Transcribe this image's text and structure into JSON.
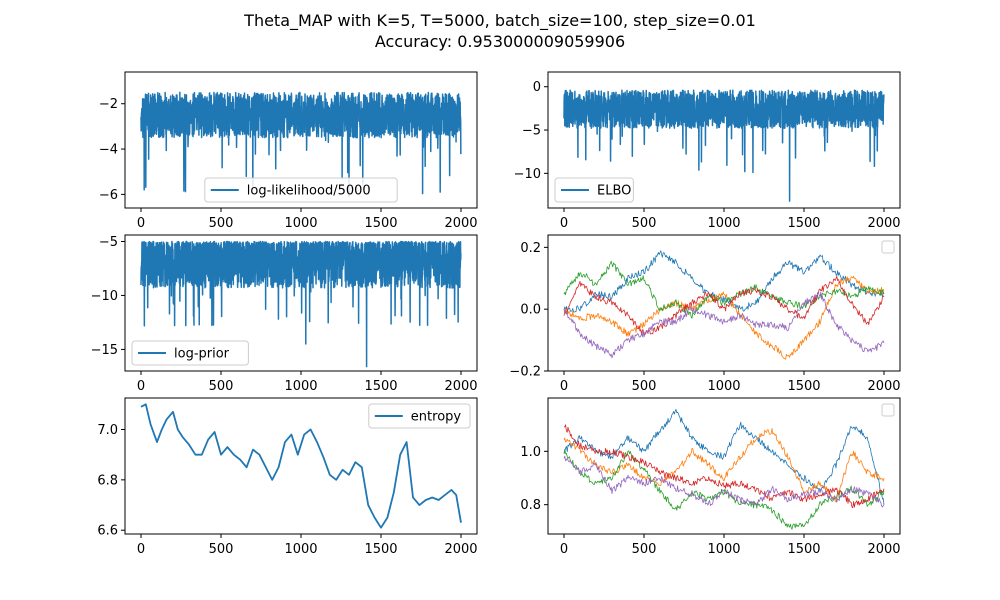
{
  "title": {
    "line1": "Theta_MAP with K=5, T=5000, batch_size=100, step_size=0.01",
    "line2": "Accuracy: 0.953000009059906"
  },
  "colors": {
    "primary": "#1f77b4",
    "series": [
      "#1f77b4",
      "#ff7f0e",
      "#2ca02c",
      "#d62728",
      "#9467bd"
    ]
  },
  "chart_data": [
    {
      "type": "line",
      "legend": "log-likelihood/5000",
      "legend_position": "bottom-center",
      "xlim": [
        -100,
        2100
      ],
      "ylim": [
        -6.6,
        -0.6
      ],
      "xticks": [
        0,
        500,
        1000,
        1500,
        2000
      ],
      "xtick_labels": [
        "0",
        "500",
        "1000",
        "1500",
        "2000"
      ],
      "yticks": [
        -6,
        -4,
        -2
      ],
      "ytick_labels": [
        "−6",
        "−4",
        "−2"
      ],
      "signal": {
        "kind": "noise",
        "n": 2000,
        "base": -2.5,
        "spread": 1.0,
        "spike_prob": 0.02,
        "spike_min": -6.0,
        "top": -0.7
      },
      "notable_points": [
        [
          1300,
          -6.1
        ],
        [
          1870,
          -5.9
        ],
        [
          20,
          -5.8
        ]
      ]
    },
    {
      "type": "line",
      "legend": "ELBO",
      "legend_position": "bottom-left",
      "xlim": [
        -100,
        2100
      ],
      "ylim": [
        -14,
        1.7
      ],
      "xticks": [
        0,
        500,
        1000,
        1500,
        2000
      ],
      "xtick_labels": [
        "0",
        "500",
        "1000",
        "1500",
        "2000"
      ],
      "yticks": [
        -10,
        -5,
        0
      ],
      "ytick_labels": [
        "−10",
        "−5",
        "0"
      ],
      "signal": {
        "kind": "noise",
        "n": 2000,
        "base": -2.6,
        "spread": 2.2,
        "spike_prob": 0.02,
        "spike_min": -10,
        "top": 0.8
      },
      "notable_points": [
        [
          1410,
          -13.2
        ],
        [
          1130,
          -9.8
        ],
        [
          1940,
          -9.2
        ]
      ]
    },
    {
      "type": "line",
      "legend": "log-prior",
      "legend_position": "bottom-left",
      "xlim": [
        -100,
        2100
      ],
      "ylim": [
        -17,
        -4.4
      ],
      "xticks": [
        0,
        500,
        1000,
        1500,
        2000
      ],
      "xtick_labels": [
        "0",
        "500",
        "1000",
        "1500",
        "2000"
      ],
      "yticks": [
        -15,
        -10,
        -5
      ],
      "ytick_labels": [
        "−15",
        "−10",
        "−5"
      ],
      "signal": {
        "kind": "noise",
        "n": 2000,
        "base": -6.8,
        "spread": 2.5,
        "spike_prob": 0.02,
        "spike_min": -13,
        "top": -5.0
      },
      "notable_points": [
        [
          1410,
          -16.6
        ],
        [
          1030,
          -14.5
        ],
        [
          280,
          -12.8
        ]
      ]
    },
    {
      "type": "line",
      "legend": "",
      "legend_position": "top-right",
      "xlim": [
        -100,
        2100
      ],
      "ylim": [
        -0.2,
        0.24
      ],
      "xticks": [
        0,
        500,
        1000,
        1500,
        2000
      ],
      "xtick_labels": [
        "0",
        "500",
        "1000",
        "1500",
        "2000"
      ],
      "yticks": [
        -0.2,
        0.0,
        0.2
      ],
      "ytick_labels": [
        "−0.2",
        "0.0",
        "0.2"
      ],
      "series": [
        {
          "x": [
            0,
            100,
            200,
            300,
            400,
            500,
            600,
            700,
            800,
            900,
            1000,
            1100,
            1200,
            1300,
            1400,
            1500,
            1600,
            1700,
            1800,
            1900,
            2000
          ],
          "y": [
            0.0,
            0.0,
            0.05,
            0.04,
            0.1,
            0.12,
            0.18,
            0.15,
            0.1,
            0.05,
            0.03,
            0.0,
            0.02,
            0.1,
            0.15,
            0.12,
            0.17,
            0.12,
            0.08,
            0.05,
            0.05
          ]
        },
        {
          "x": [
            0,
            100,
            200,
            300,
            400,
            500,
            600,
            700,
            800,
            900,
            1000,
            1100,
            1200,
            1300,
            1400,
            1500,
            1600,
            1700,
            1800,
            1900,
            2000
          ],
          "y": [
            0.0,
            -0.03,
            -0.02,
            -0.04,
            -0.08,
            -0.05,
            0.0,
            0.02,
            0.0,
            0.03,
            0.05,
            -0.02,
            -0.08,
            -0.12,
            -0.16,
            -0.1,
            -0.04,
            0.08,
            0.1,
            0.06,
            0.06
          ]
        },
        {
          "x": [
            0,
            100,
            200,
            300,
            400,
            500,
            600,
            700,
            800,
            900,
            1000,
            1100,
            1200,
            1300,
            1400,
            1500,
            1600,
            1700,
            1800,
            1900,
            2000
          ],
          "y": [
            0.05,
            0.12,
            0.08,
            0.15,
            0.08,
            0.1,
            0.0,
            0.02,
            -0.02,
            0.04,
            0.02,
            0.05,
            0.07,
            0.04,
            0.02,
            0.01,
            0.04,
            0.06,
            0.04,
            0.07,
            0.05
          ]
        },
        {
          "x": [
            0,
            100,
            200,
            300,
            400,
            500,
            600,
            700,
            800,
            900,
            1000,
            1100,
            1200,
            1300,
            1400,
            1500,
            1600,
            1700,
            1800,
            1900,
            2000
          ],
          "y": [
            -0.02,
            0.08,
            0.04,
            0.02,
            -0.02,
            -0.08,
            -0.06,
            -0.02,
            0.02,
            0.05,
            0.0,
            0.05,
            0.06,
            0.04,
            0.0,
            -0.03,
            0.06,
            0.1,
            0.02,
            -0.05,
            0.04
          ]
        },
        {
          "x": [
            0,
            100,
            200,
            300,
            400,
            500,
            600,
            700,
            800,
            900,
            1000,
            1100,
            1200,
            1300,
            1400,
            1500,
            1600,
            1700,
            1800,
            1900,
            2000
          ],
          "y": [
            0.0,
            -0.08,
            -0.12,
            -0.15,
            -0.1,
            -0.08,
            -0.04,
            -0.04,
            0.0,
            -0.02,
            -0.04,
            -0.02,
            -0.05,
            -0.05,
            -0.06,
            0.02,
            0.05,
            -0.05,
            -0.1,
            -0.14,
            -0.11
          ]
        }
      ]
    },
    {
      "type": "line",
      "legend": "entropy",
      "legend_position": "top-right",
      "xlim": [
        -100,
        2100
      ],
      "ylim": [
        6.585,
        7.125
      ],
      "xticks": [
        0,
        500,
        1000,
        1500,
        2000
      ],
      "xtick_labels": [
        "0",
        "500",
        "1000",
        "1500",
        "2000"
      ],
      "yticks": [
        6.6,
        6.8,
        7.0
      ],
      "ytick_labels": [
        "6.6",
        "6.8",
        "7.0"
      ],
      "series": [
        {
          "x": [
            0,
            30,
            60,
            100,
            130,
            160,
            200,
            230,
            260,
            300,
            340,
            380,
            420,
            460,
            500,
            540,
            580,
            620,
            660,
            700,
            740,
            780,
            820,
            860,
            900,
            940,
            980,
            1020,
            1060,
            1100,
            1140,
            1180,
            1220,
            1260,
            1300,
            1340,
            1380,
            1420,
            1460,
            1500,
            1540,
            1580,
            1620,
            1660,
            1700,
            1740,
            1780,
            1820,
            1860,
            1900,
            1940,
            1970,
            2000
          ],
          "y": [
            7.09,
            7.1,
            7.02,
            6.95,
            7.0,
            7.04,
            7.07,
            7.0,
            6.97,
            6.94,
            6.9,
            6.9,
            6.96,
            6.99,
            6.9,
            6.93,
            6.9,
            6.88,
            6.85,
            6.92,
            6.9,
            6.85,
            6.8,
            6.85,
            6.95,
            6.98,
            6.9,
            6.98,
            7.0,
            6.95,
            6.89,
            6.82,
            6.8,
            6.84,
            6.82,
            6.87,
            6.85,
            6.7,
            6.65,
            6.61,
            6.65,
            6.75,
            6.9,
            6.95,
            6.73,
            6.7,
            6.72,
            6.73,
            6.72,
            6.74,
            6.76,
            6.74,
            6.63
          ]
        }
      ]
    },
    {
      "type": "line",
      "legend": "",
      "legend_position": "top-right",
      "xlim": [
        -100,
        2100
      ],
      "ylim": [
        0.69,
        1.2
      ],
      "xticks": [
        0,
        500,
        1000,
        1500,
        2000
      ],
      "xtick_labels": [
        "0",
        "500",
        "1000",
        "1500",
        "2000"
      ],
      "yticks": [
        0.8,
        1.0
      ],
      "ytick_labels": [
        "0.8",
        "1.0"
      ],
      "series": [
        {
          "x": [
            0,
            100,
            200,
            300,
            400,
            500,
            600,
            700,
            800,
            900,
            1000,
            1100,
            1200,
            1300,
            1400,
            1500,
            1600,
            1700,
            1800,
            1900,
            2000
          ],
          "y": [
            1.0,
            1.05,
            1.0,
            0.98,
            1.05,
            1.0,
            1.08,
            1.15,
            1.05,
            1.0,
            0.98,
            1.1,
            1.05,
            1.0,
            0.95,
            0.9,
            0.85,
            0.95,
            1.1,
            1.05,
            0.8
          ]
        },
        {
          "x": [
            0,
            100,
            200,
            300,
            400,
            500,
            600,
            700,
            800,
            900,
            1000,
            1100,
            1200,
            1300,
            1400,
            1500,
            1600,
            1700,
            1800,
            1900,
            2000
          ],
          "y": [
            1.05,
            1.0,
            0.95,
            0.92,
            0.95,
            0.9,
            0.88,
            0.92,
            1.0,
            0.95,
            0.9,
            0.98,
            1.05,
            1.08,
            0.98,
            0.85,
            0.88,
            0.82,
            1.0,
            0.92,
            0.9
          ]
        },
        {
          "x": [
            0,
            100,
            200,
            300,
            400,
            500,
            600,
            700,
            800,
            900,
            1000,
            1100,
            1200,
            1300,
            1400,
            1500,
            1600,
            1700,
            1800,
            1900,
            2000
          ],
          "y": [
            1.0,
            0.92,
            0.88,
            0.9,
            1.0,
            0.93,
            0.85,
            0.78,
            0.85,
            0.82,
            0.85,
            0.8,
            0.8,
            0.78,
            0.72,
            0.72,
            0.8,
            0.83,
            0.86,
            0.8,
            0.85
          ]
        },
        {
          "x": [
            0,
            100,
            200,
            300,
            400,
            500,
            600,
            700,
            800,
            900,
            1000,
            1100,
            1200,
            1300,
            1400,
            1500,
            1600,
            1700,
            1800,
            1900,
            2000
          ],
          "y": [
            1.1,
            1.02,
            1.0,
            1.0,
            0.98,
            0.96,
            0.92,
            0.9,
            0.88,
            0.9,
            0.87,
            0.88,
            0.86,
            0.82,
            0.85,
            0.82,
            0.84,
            0.86,
            0.8,
            0.82,
            0.86
          ]
        },
        {
          "x": [
            0,
            100,
            200,
            300,
            400,
            500,
            600,
            700,
            800,
            900,
            1000,
            1100,
            1200,
            1300,
            1400,
            1500,
            1600,
            1700,
            1800,
            1900,
            2000
          ],
          "y": [
            0.98,
            0.92,
            0.95,
            0.85,
            0.9,
            0.88,
            0.9,
            0.86,
            0.84,
            0.8,
            0.85,
            0.82,
            0.8,
            0.86,
            0.82,
            0.84,
            0.85,
            0.82,
            0.86,
            0.84,
            0.8
          ]
        }
      ]
    }
  ]
}
